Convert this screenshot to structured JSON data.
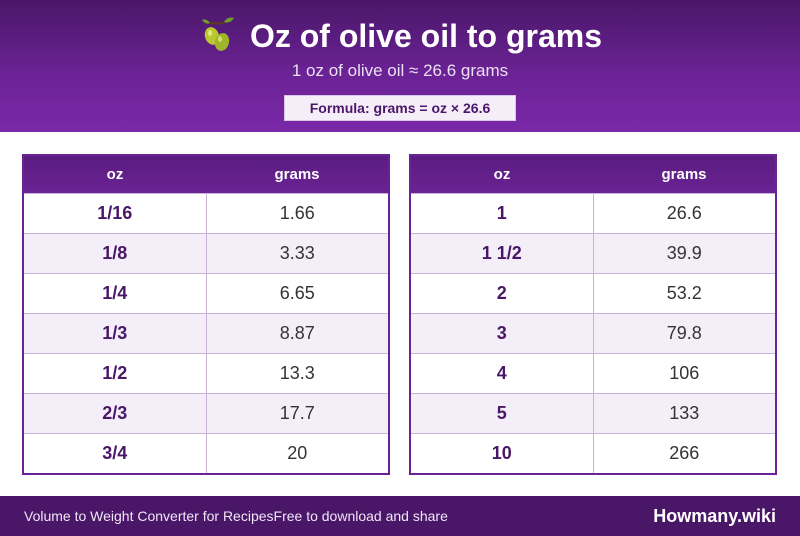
{
  "header": {
    "title": "Oz of olive oil to grams",
    "icon": "olive-icon",
    "subtitle": "1 oz of olive oil ≈ 26.6 grams",
    "formula": "Formula: grams = oz × 26.6"
  },
  "tables": {
    "left": {
      "col1": "oz",
      "col2": "grams",
      "rows": [
        {
          "oz": "1/16",
          "grams": "1.66"
        },
        {
          "oz": "1/8",
          "grams": "3.33"
        },
        {
          "oz": "1/4",
          "grams": "6.65"
        },
        {
          "oz": "1/3",
          "grams": "8.87"
        },
        {
          "oz": "1/2",
          "grams": "13.3"
        },
        {
          "oz": "2/3",
          "grams": "17.7"
        },
        {
          "oz": "3/4",
          "grams": "20"
        }
      ]
    },
    "right": {
      "col1": "oz",
      "col2": "grams",
      "rows": [
        {
          "oz": "1",
          "grams": "26.6"
        },
        {
          "oz": "1 1/2",
          "grams": "39.9"
        },
        {
          "oz": "2",
          "grams": "53.2"
        },
        {
          "oz": "3",
          "grams": "79.8"
        },
        {
          "oz": "4",
          "grams": "106"
        },
        {
          "oz": "5",
          "grams": "133"
        },
        {
          "oz": "10",
          "grams": "266"
        }
      ]
    }
  },
  "footer": {
    "left_text": "Volume to Weight Converter for Recipes",
    "left_subtext": "Free to download and share",
    "brand": "Howmany.wiki"
  },
  "colors": {
    "header_purple": "#6a2294",
    "dark_purple": "#4a1768",
    "alt_row": "#f3eef8"
  }
}
